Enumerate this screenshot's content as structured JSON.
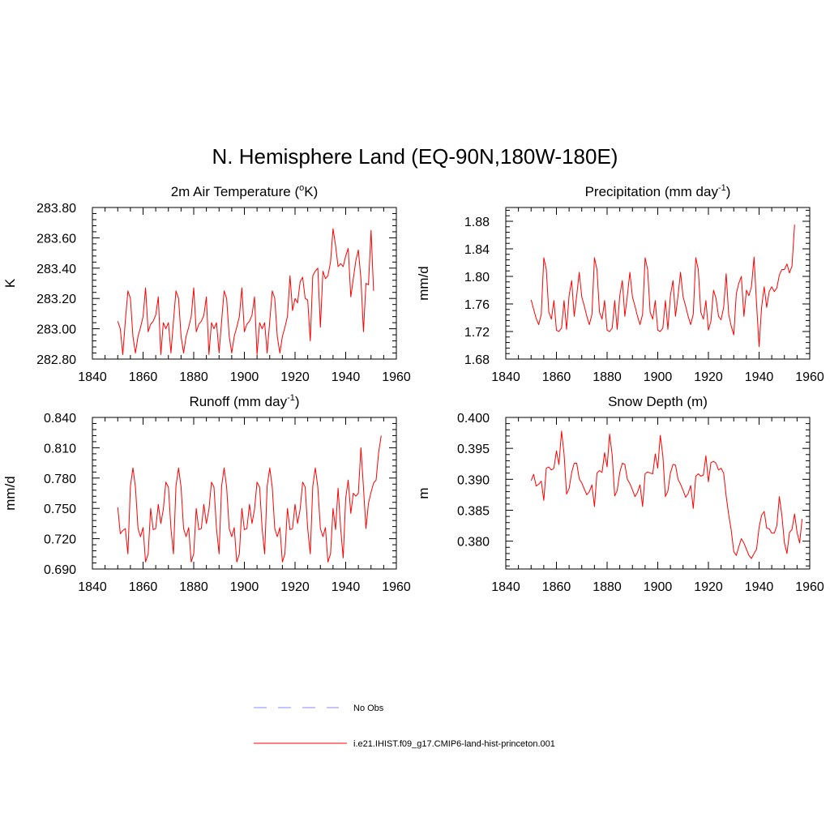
{
  "figure": {
    "title": "N. Hemisphere Land (EQ-90N,180W-180E)",
    "line_color": "#ff0000",
    "obs_line_color": "#a0a0ff"
  },
  "legend": {
    "placement": "bottom-center",
    "entries": [
      {
        "label": "No Obs",
        "style": "dashed",
        "color": "#a0a0ff"
      },
      {
        "label": "i.e21.IHIST.f09_g17.CMIP6-land-hist-princeton.001",
        "style": "solid",
        "color": "#ff0000"
      }
    ]
  },
  "chart_data": [
    {
      "type": "line",
      "title": "2m Air Temperature (",
      "title_sup": "o",
      "title_end": "K)",
      "ylabel": "K",
      "xlim": [
        1840,
        1960
      ],
      "xticks": [
        1840,
        1860,
        1880,
        1900,
        1920,
        1940,
        1960
      ],
      "ylim": [
        282.8,
        283.8
      ],
      "yticks": [
        282.8,
        283.0,
        283.2,
        283.4,
        283.6,
        283.8
      ],
      "ytick_labels": [
        "282.80",
        "283.00",
        "283.20",
        "283.40",
        "283.60",
        "283.80"
      ],
      "x_start": 1850,
      "values": [
        283.05,
        283.0,
        282.83,
        283.05,
        283.25,
        283.2,
        282.95,
        282.84,
        282.95,
        283.01,
        283.08,
        283.27,
        282.98,
        283.03,
        283.05,
        283.09,
        283.21,
        282.83,
        283.04,
        283.0,
        283.04,
        282.84,
        283.05,
        283.25,
        283.2,
        282.95,
        282.84,
        282.95,
        283.01,
        283.08,
        283.27,
        282.98,
        283.03,
        283.05,
        283.09,
        283.21,
        282.83,
        283.04,
        283.0,
        283.04,
        282.84,
        283.05,
        283.25,
        283.2,
        282.95,
        282.84,
        282.95,
        283.01,
        283.08,
        283.27,
        282.98,
        283.03,
        283.05,
        283.09,
        283.21,
        282.83,
        283.04,
        283.0,
        283.04,
        282.84,
        283.05,
        283.25,
        283.2,
        282.95,
        282.84,
        282.95,
        283.01,
        283.08,
        283.35,
        283.12,
        283.2,
        283.17,
        283.31,
        283.34,
        283.2,
        283.19,
        282.92,
        283.35,
        283.38,
        283.4,
        283.01,
        283.38,
        283.33,
        283.35,
        283.44,
        283.66,
        283.55,
        283.41,
        283.43,
        283.41,
        283.48,
        283.53,
        283.21,
        283.33,
        283.45,
        283.52,
        283.33,
        282.98,
        283.3,
        283.29,
        283.65,
        283.25
      ]
    },
    {
      "type": "line",
      "title": "Precipitation (mm day",
      "title_sup": "-1",
      "title_end": ")",
      "ylabel": "mm/d",
      "xlim": [
        1840,
        1960
      ],
      "xticks": [
        1840,
        1860,
        1880,
        1900,
        1920,
        1940,
        1960
      ],
      "ylim": [
        1.68,
        1.9
      ],
      "yticks": [
        1.68,
        1.72,
        1.76,
        1.8,
        1.84,
        1.88
      ],
      "ytick_labels": [
        "1.68",
        "1.72",
        "1.76",
        "1.80",
        "1.84",
        "1.88"
      ],
      "x_start": 1850,
      "values": [
        1.766,
        1.752,
        1.739,
        1.73,
        1.745,
        1.827,
        1.81,
        1.748,
        1.738,
        1.765,
        1.722,
        1.72,
        1.725,
        1.765,
        1.723,
        1.772,
        1.794,
        1.742,
        1.772,
        1.806,
        1.77,
        1.757,
        1.742,
        1.73,
        1.745,
        1.827,
        1.81,
        1.748,
        1.738,
        1.765,
        1.722,
        1.72,
        1.725,
        1.765,
        1.723,
        1.772,
        1.794,
        1.742,
        1.772,
        1.806,
        1.77,
        1.757,
        1.742,
        1.73,
        1.745,
        1.827,
        1.81,
        1.748,
        1.738,
        1.765,
        1.722,
        1.72,
        1.725,
        1.765,
        1.723,
        1.772,
        1.794,
        1.742,
        1.772,
        1.806,
        1.77,
        1.757,
        1.742,
        1.73,
        1.745,
        1.827,
        1.81,
        1.748,
        1.738,
        1.765,
        1.722,
        1.735,
        1.78,
        1.768,
        1.742,
        1.737,
        1.755,
        1.804,
        1.745,
        1.728,
        1.715,
        1.775,
        1.79,
        1.8,
        1.742,
        1.78,
        1.772,
        1.785,
        1.828,
        1.76,
        1.698,
        1.755,
        1.785,
        1.755,
        1.778,
        1.785,
        1.778,
        1.783,
        1.802,
        1.81,
        1.81,
        1.818,
        1.805,
        1.815,
        1.875
      ]
    },
    {
      "type": "line",
      "title": "Runoff (mm day",
      "title_sup": "-1",
      "title_end": ")",
      "ylabel": "mm/d",
      "xlim": [
        1840,
        1960
      ],
      "xticks": [
        1840,
        1860,
        1880,
        1900,
        1920,
        1940,
        1960
      ],
      "ylim": [
        0.69,
        0.84
      ],
      "yticks": [
        0.69,
        0.72,
        0.75,
        0.78,
        0.81,
        0.84
      ],
      "ytick_labels": [
        "0.690",
        "0.720",
        "0.750",
        "0.780",
        "0.810",
        "0.840"
      ],
      "x_start": 1850,
      "values": [
        0.751,
        0.725,
        0.728,
        0.73,
        0.705,
        0.772,
        0.79,
        0.771,
        0.73,
        0.722,
        0.731,
        0.697,
        0.705,
        0.75,
        0.729,
        0.73,
        0.754,
        0.735,
        0.749,
        0.776,
        0.771,
        0.73,
        0.705,
        0.772,
        0.79,
        0.771,
        0.73,
        0.722,
        0.731,
        0.697,
        0.705,
        0.75,
        0.729,
        0.73,
        0.754,
        0.735,
        0.749,
        0.776,
        0.771,
        0.73,
        0.705,
        0.772,
        0.79,
        0.771,
        0.73,
        0.722,
        0.731,
        0.697,
        0.705,
        0.75,
        0.729,
        0.73,
        0.754,
        0.735,
        0.749,
        0.776,
        0.771,
        0.73,
        0.705,
        0.772,
        0.79,
        0.771,
        0.73,
        0.722,
        0.731,
        0.697,
        0.705,
        0.75,
        0.729,
        0.73,
        0.754,
        0.735,
        0.749,
        0.776,
        0.771,
        0.73,
        0.705,
        0.772,
        0.79,
        0.771,
        0.73,
        0.722,
        0.731,
        0.697,
        0.705,
        0.75,
        0.729,
        0.77,
        0.73,
        0.701,
        0.76,
        0.778,
        0.745,
        0.765,
        0.762,
        0.765,
        0.81,
        0.771,
        0.73,
        0.755,
        0.766,
        0.775,
        0.778,
        0.805,
        0.822
      ]
    },
    {
      "type": "line",
      "title": "Snow Depth (m)",
      "title_sup": "",
      "title_end": "",
      "ylabel": "m",
      "xlim": [
        1840,
        1960
      ],
      "xticks": [
        1840,
        1860,
        1880,
        1900,
        1920,
        1940,
        1960
      ],
      "ylim": [
        0.3755,
        0.4
      ],
      "yticks": [
        0.38,
        0.385,
        0.39,
        0.395,
        0.4
      ],
      "ytick_labels": [
        "0.380",
        "0.385",
        "0.390",
        "0.395",
        "0.400"
      ],
      "x_start": 1850,
      "values": [
        0.3898,
        0.3908,
        0.3889,
        0.3892,
        0.3897,
        0.3866,
        0.3918,
        0.392,
        0.3915,
        0.3918,
        0.3946,
        0.3924,
        0.3978,
        0.3941,
        0.3876,
        0.3885,
        0.3911,
        0.3926,
        0.3926,
        0.3901,
        0.3894,
        0.3884,
        0.3875,
        0.388,
        0.3891,
        0.3856,
        0.391,
        0.3914,
        0.3911,
        0.3943,
        0.392,
        0.3973,
        0.3939,
        0.3873,
        0.3882,
        0.3911,
        0.3926,
        0.3924,
        0.39,
        0.3893,
        0.3883,
        0.3872,
        0.3879,
        0.3891,
        0.3856,
        0.3909,
        0.3912,
        0.391,
        0.3909,
        0.3941,
        0.3918,
        0.3971,
        0.3938,
        0.3872,
        0.3881,
        0.391,
        0.3924,
        0.3923,
        0.39,
        0.3892,
        0.3882,
        0.3871,
        0.3877,
        0.389,
        0.3853,
        0.3905,
        0.3909,
        0.3905,
        0.3907,
        0.3938,
        0.3896,
        0.3927,
        0.3929,
        0.3926,
        0.3915,
        0.3918,
        0.391,
        0.3873,
        0.3843,
        0.3818,
        0.3783,
        0.3777,
        0.3791,
        0.3804,
        0.3797,
        0.3787,
        0.3777,
        0.3772,
        0.378,
        0.3787,
        0.3822,
        0.3842,
        0.3848,
        0.3821,
        0.382,
        0.3813,
        0.3813,
        0.3825,
        0.3872,
        0.3842,
        0.3797,
        0.378,
        0.3814,
        0.3819,
        0.3844,
        0.3814,
        0.3797,
        0.3836
      ]
    }
  ]
}
